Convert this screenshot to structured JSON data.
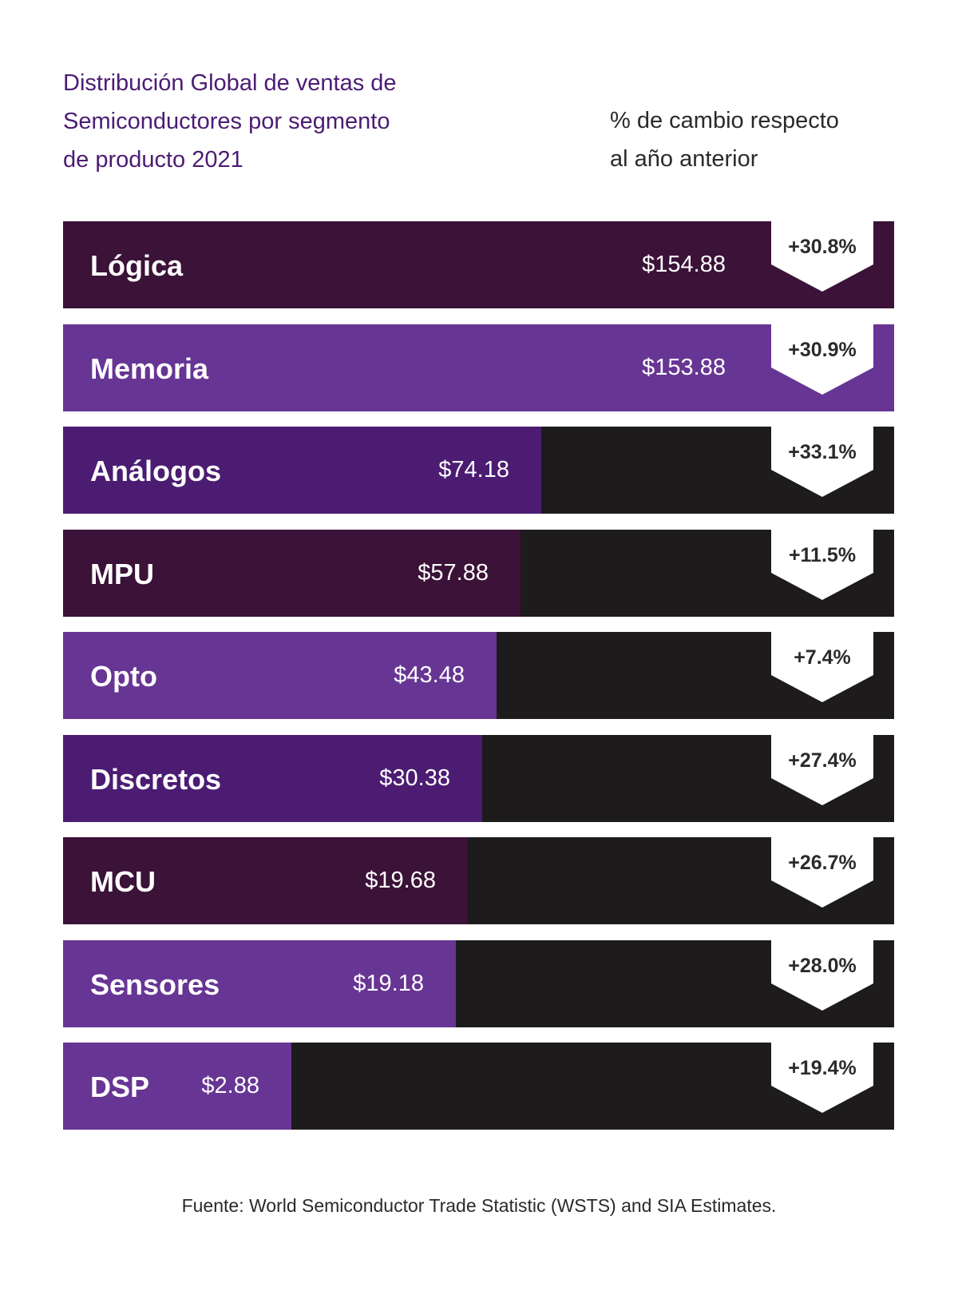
{
  "title_lines": [
    "Distribución Global de ventas de",
    "Semiconductores por segmento",
    "de producto 2021"
  ],
  "subtitle_lines": [
    "% de cambio respecto",
    "al año anterior"
  ],
  "source": "Fuente: World Semiconductor Trade Statistic (WSTS) and SIA Estimates.",
  "colors": {
    "dark_purple": "#3b1238",
    "medium_purple": "#673593",
    "indigo_purple": "#4b1c72",
    "track_black": "#1d1b1c",
    "badge_white": "#ffffff",
    "title_purple": "#4b1c73"
  },
  "chart_data": {
    "type": "bar",
    "orientation": "horizontal",
    "title": "Distribución Global de ventas de Semiconductores por segmento de producto 2021",
    "subtitle": "% de cambio respecto al año anterior",
    "categories": [
      "Lógica",
      "Memoria",
      "Análogos",
      "MPU",
      "Opto",
      "Discretos",
      "MCU",
      "Sensores",
      "DSP"
    ],
    "values": [
      154.88,
      153.88,
      74.18,
      57.88,
      43.48,
      30.38,
      19.68,
      19.18,
      2.88
    ],
    "value_labels": [
      "$154.88",
      "$153.88",
      "$74.18",
      "$57.88",
      "$43.48",
      "$30.38",
      "$19.68",
      "$19.18",
      "$2.88"
    ],
    "change_labels": [
      "+30.8%",
      "+30.9%",
      "+33.1%",
      "+11.5%",
      "+7.4%",
      "+27.4%",
      "+26.7%",
      "+28.0%",
      "+19.4%"
    ],
    "change_values": [
      30.8,
      30.9,
      33.1,
      11.5,
      7.4,
      27.4,
      26.7,
      28.0,
      19.4
    ],
    "fill_fractions": [
      1.0,
      1.0,
      0.575,
      0.55,
      0.522,
      0.504,
      0.487,
      0.473,
      0.275
    ],
    "bar_colors": [
      "#3b1238",
      "#673593",
      "#4b1c72",
      "#3b1238",
      "#673593",
      "#4b1c72",
      "#3b1238",
      "#673593",
      "#673593"
    ],
    "xlabel": "",
    "ylabel": "",
    "grid": false,
    "legend": "none"
  }
}
